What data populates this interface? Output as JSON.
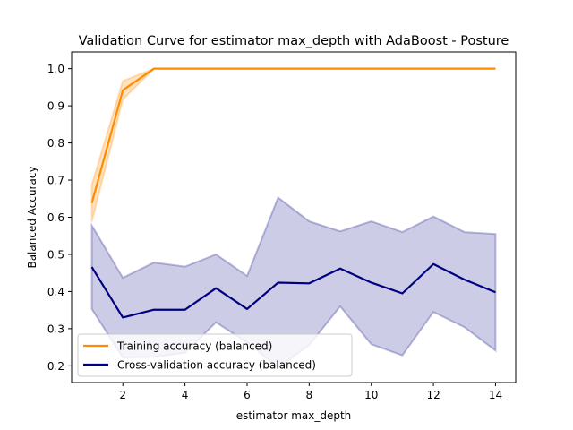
{
  "chart_data": {
    "type": "line",
    "title": "Validation Curve for estimator max_depth with AdaBoost - Posture",
    "xlabel": "estimator max_depth",
    "ylabel": "Balanced Accuracy",
    "xlim": [
      0.35,
      14.65
    ],
    "ylim": [
      0.155,
      1.045
    ],
    "xticks": [
      2,
      4,
      6,
      8,
      10,
      12,
      14
    ],
    "yticks": [
      0.2,
      0.3,
      0.4,
      0.5,
      0.6,
      0.7,
      0.8,
      0.9,
      1.0
    ],
    "xtick_labels": [
      "2",
      "4",
      "6",
      "8",
      "10",
      "12",
      "14"
    ],
    "ytick_labels": [
      "0.2",
      "0.3",
      "0.4",
      "0.5",
      "0.6",
      "0.7",
      "0.8",
      "0.9",
      "1.0"
    ],
    "grid": false,
    "legend_position": "lower-left",
    "x": [
      1,
      2,
      3,
      4,
      5,
      6,
      7,
      8,
      9,
      10,
      11,
      12,
      13,
      14
    ],
    "series": [
      {
        "name": "Training accuracy (balanced)",
        "color": "#ff8c00",
        "mean": [
          0.638,
          0.942,
          1.0,
          1.0,
          1.0,
          1.0,
          1.0,
          1.0,
          1.0,
          1.0,
          1.0,
          1.0,
          1.0,
          1.0
        ],
        "upper": [
          0.688,
          0.967,
          1.0,
          1.0,
          1.0,
          1.0,
          1.0,
          1.0,
          1.0,
          1.0,
          1.0,
          1.0,
          1.0,
          1.0
        ],
        "lower": [
          0.588,
          0.917,
          1.0,
          1.0,
          1.0,
          1.0,
          1.0,
          1.0,
          1.0,
          1.0,
          1.0,
          1.0,
          1.0,
          1.0
        ]
      },
      {
        "name": "Cross-validation accuracy (balanced)",
        "color": "#000080",
        "mean": [
          0.466,
          0.33,
          0.351,
          0.351,
          0.409,
          0.353,
          0.424,
          0.422,
          0.462,
          0.424,
          0.395,
          0.474,
          0.432,
          0.398
        ],
        "upper": [
          0.578,
          0.437,
          0.478,
          0.467,
          0.5,
          0.442,
          0.653,
          0.589,
          0.562,
          0.589,
          0.56,
          0.602,
          0.56,
          0.555
        ],
        "lower": [
          0.353,
          0.222,
          0.224,
          0.235,
          0.317,
          0.263,
          0.195,
          0.256,
          0.36,
          0.258,
          0.228,
          0.345,
          0.304,
          0.241
        ]
      }
    ]
  }
}
